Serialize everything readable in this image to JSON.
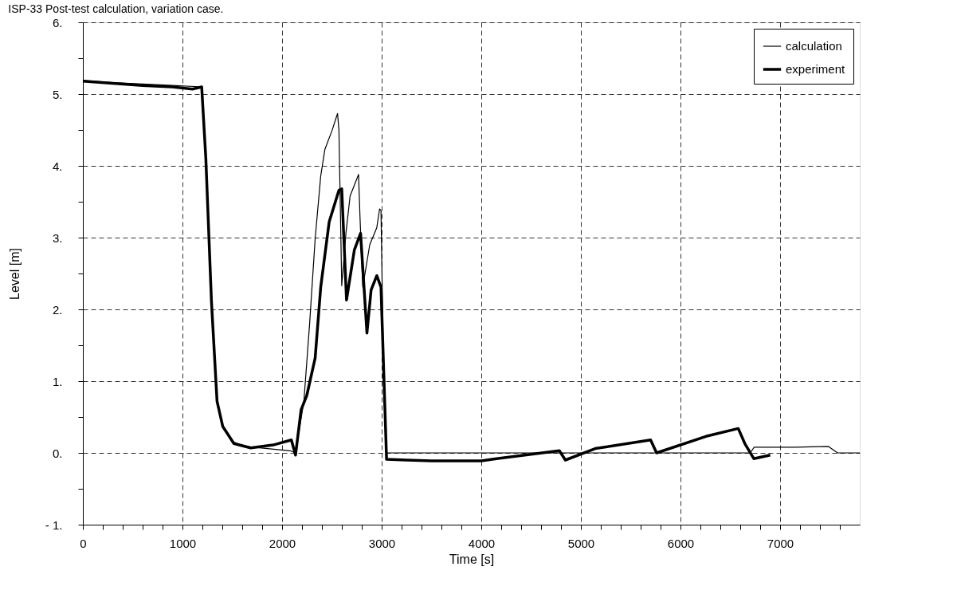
{
  "chart_data": {
    "type": "line",
    "title": "ISP-33 Post-test calculation, variation case.",
    "xlabel": "Time [s]",
    "ylabel": "Level [m]",
    "xlim": [
      0,
      7800
    ],
    "ylim": [
      -1,
      6
    ],
    "xticks": [
      0,
      {
        "value": 200,
        "label": null
      },
      {
        "value": 400,
        "label": null
      },
      {
        "value": 600,
        "label": null
      },
      {
        "value": 800,
        "label": null
      },
      1000,
      {
        "value": 1200,
        "label": null
      },
      {
        "value": 1400,
        "label": null
      },
      {
        "value": 1600,
        "label": null
      },
      {
        "value": 1800,
        "label": null
      },
      2000,
      {
        "value": 2200,
        "label": null
      },
      {
        "value": 2400,
        "label": null
      },
      {
        "value": 2600,
        "label": null
      },
      {
        "value": 2800,
        "label": null
      },
      3000,
      {
        "value": 3200,
        "label": null
      },
      {
        "value": 3400,
        "label": null
      },
      {
        "value": 3600,
        "label": null
      },
      {
        "value": 3800,
        "label": null
      },
      4000,
      {
        "value": 4200,
        "label": null
      },
      {
        "value": 4400,
        "label": null
      },
      {
        "value": 4600,
        "label": null
      },
      {
        "value": 4800,
        "label": null
      },
      5000,
      {
        "value": 5200,
        "label": null
      },
      {
        "value": 5400,
        "label": null
      },
      {
        "value": 5600,
        "label": null
      },
      {
        "value": 5800,
        "label": null
      },
      6000,
      {
        "value": 6200,
        "label": null
      },
      {
        "value": 6400,
        "label": null
      },
      {
        "value": 6600,
        "label": null
      },
      {
        "value": 6800,
        "label": null
      },
      7000,
      {
        "value": 7200,
        "label": null
      },
      {
        "value": 7400,
        "label": null
      },
      {
        "value": 7600,
        "label": null
      }
    ],
    "yticks": [
      {
        "value": -1,
        "label": "- 1."
      },
      {
        "value": -0.5,
        "label": null
      },
      {
        "value": 0,
        "label": "0."
      },
      {
        "value": 0.5,
        "label": null
      },
      {
        "value": 1,
        "label": "1."
      },
      {
        "value": 1.5,
        "label": null
      },
      {
        "value": 2,
        "label": "2."
      },
      {
        "value": 2.5,
        "label": null
      },
      {
        "value": 3,
        "label": "3."
      },
      {
        "value": 3.5,
        "label": null
      },
      {
        "value": 4,
        "label": "4."
      },
      {
        "value": 4.5,
        "label": null
      },
      {
        "value": 5,
        "label": "5."
      },
      {
        "value": 5.5,
        "label": null
      },
      {
        "value": 6,
        "label": "6."
      }
    ],
    "grid": true,
    "legend": "top right",
    "series": [
      {
        "name": "calculation",
        "color": "#000000",
        "x": [
          0,
          300,
          600,
          900,
          1193,
          1235,
          1291,
          1347,
          1404,
          1516,
          1629,
          2079,
          2135,
          2219,
          2276,
          2332,
          2388,
          2430,
          2501,
          2557,
          2571,
          2599,
          2641,
          2683,
          2768,
          2782,
          2810,
          2880,
          2951,
          2979,
          2993,
          3021,
          3049,
          4000,
          5000,
          6000,
          6700,
          6740,
          7156,
          7486,
          7577,
          7800
        ],
        "values": [
          5.19,
          5.16,
          5.14,
          5.12,
          5.1,
          4.09,
          2.11,
          0.72,
          0.37,
          0.15,
          0.09,
          0.03,
          0.0,
          0.72,
          1.79,
          2.98,
          3.86,
          4.23,
          4.49,
          4.73,
          4.49,
          2.33,
          3.06,
          3.58,
          3.88,
          3.3,
          2.31,
          2.9,
          3.14,
          3.4,
          3.38,
          0.92,
          0.0,
          0.0,
          0.0,
          0.0,
          0.0,
          0.08,
          0.08,
          0.09,
          0.0,
          0.0
        ]
      },
      {
        "name": "experiment",
        "color": "#000000",
        "x": [
          0,
          300,
          600,
          900,
          1100,
          1193,
          1235,
          1291,
          1347,
          1404,
          1516,
          1685,
          1910,
          2093,
          2135,
          2191,
          2248,
          2332,
          2388,
          2473,
          2571,
          2599,
          2647,
          2726,
          2788,
          2852,
          2894,
          2951,
          2993,
          3049,
          3252,
          3500,
          4000,
          4153,
          4784,
          4844,
          5144,
          5700,
          5760,
          6255,
          6580,
          6646,
          6736,
          6901
        ],
        "values": [
          5.18,
          5.15,
          5.12,
          5.1,
          5.07,
          5.1,
          4.09,
          2.11,
          0.72,
          0.37,
          0.13,
          0.07,
          0.11,
          0.18,
          -0.03,
          0.6,
          0.8,
          1.32,
          2.31,
          3.22,
          3.66,
          3.68,
          2.13,
          2.83,
          3.06,
          1.67,
          2.27,
          2.47,
          2.31,
          -0.09,
          -0.1,
          -0.11,
          -0.11,
          -0.08,
          0.03,
          -0.1,
          0.06,
          0.18,
          0.0,
          0.23,
          0.34,
          0.13,
          -0.08,
          -0.03
        ]
      }
    ]
  }
}
